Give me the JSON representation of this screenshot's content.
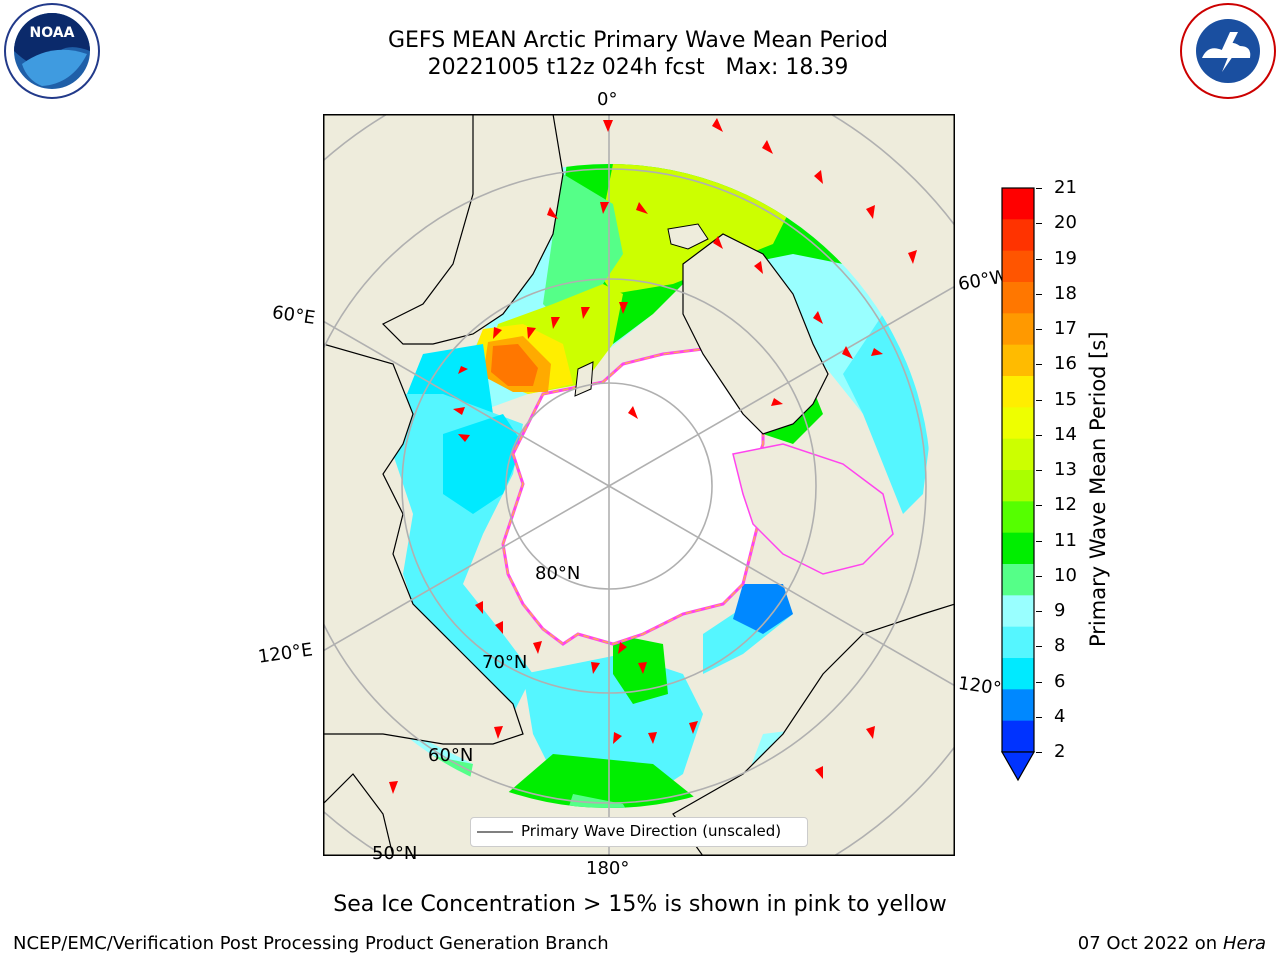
{
  "header": {
    "title_line1": "GEFS MEAN Arctic Primary Wave Mean Period",
    "title_line2": "20221005 t12z 024h fcst   Max: 18.39"
  },
  "logos": {
    "left": "noaa-logo",
    "right": "national-weather-service-logo"
  },
  "map": {
    "projection": "north-polar-stereographic",
    "longitude_labels": {
      "top": "0°",
      "right_upper": "60°W",
      "left_upper": "60°E",
      "left_lower": "120°E",
      "right_lower": "120°W",
      "bottom": "180°"
    },
    "latitude_labels": {
      "lat80": "80°N",
      "lat70": "70°N",
      "lat60": "60°N",
      "lat50": "50°N"
    },
    "colors": {
      "land": "#eeecdc",
      "ice_edge_pink": "#ff44ee",
      "ice_edge_orange": "#ffaa55",
      "arrow": "#ff0000",
      "grid": "#b0b0b0"
    }
  },
  "legend": {
    "label": "Primary Wave Direction (unscaled)"
  },
  "colorbar": {
    "title": "Primary Wave Mean Period [s]",
    "ticks": [
      "21",
      "20",
      "19",
      "18",
      "17",
      "16",
      "15",
      "14",
      "13",
      "12",
      "11",
      "10",
      "9",
      "8",
      "6",
      "4",
      "2"
    ],
    "colors": [
      "#ff0000",
      "#ff3300",
      "#ff5500",
      "#ff7700",
      "#ff9900",
      "#ffbb00",
      "#ffee00",
      "#eeff00",
      "#ccff00",
      "#aaff00",
      "#55ff00",
      "#00ee00",
      "#55ff88",
      "#99ffff",
      "#55f6ff",
      "#00eaff",
      "#0088ff",
      "#0033ff"
    ]
  },
  "caption": "Sea Ice Concentration > 15% is shown in pink to yellow",
  "footer": {
    "left": "NCEP/EMC/Verification Post Processing Product Generation Branch",
    "right_prefix": "07 Oct 2022 on ",
    "right_italic": "Hera"
  }
}
